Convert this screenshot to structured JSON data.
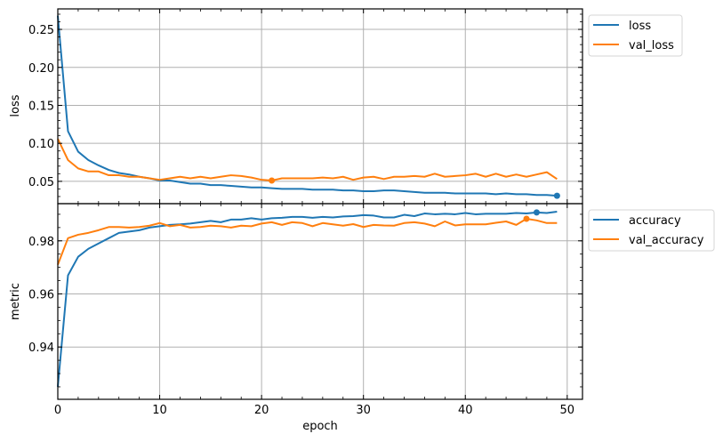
{
  "chart_data": [
    {
      "type": "line",
      "panel": "top",
      "title": "",
      "xlabel": "",
      "ylabel": "loss",
      "xlim": [
        0,
        51.5
      ],
      "ylim": [
        0.0206,
        0.277
      ],
      "yticks": [
        0.05,
        0.1,
        0.15,
        0.2,
        0.25
      ],
      "ytick_labels": [
        "0.05",
        "0.10",
        "0.15",
        "0.20",
        "0.25"
      ],
      "grid": true,
      "legend_position": "outside upper right",
      "x": [
        0,
        1,
        2,
        3,
        4,
        5,
        6,
        7,
        8,
        9,
        10,
        11,
        12,
        13,
        14,
        15,
        16,
        17,
        18,
        19,
        20,
        21,
        22,
        23,
        24,
        25,
        26,
        27,
        28,
        29,
        30,
        31,
        32,
        33,
        34,
        35,
        36,
        37,
        38,
        39,
        40,
        41,
        42,
        43,
        44,
        45,
        46,
        47,
        48,
        49
      ],
      "series": [
        {
          "name": "loss",
          "color": "#1f77b4",
          "values": [
            0.268,
            0.116,
            0.089,
            0.078,
            0.071,
            0.065,
            0.061,
            0.059,
            0.056,
            0.054,
            0.051,
            0.051,
            0.049,
            0.047,
            0.047,
            0.045,
            0.045,
            0.044,
            0.043,
            0.042,
            0.042,
            0.041,
            0.04,
            0.04,
            0.04,
            0.039,
            0.039,
            0.039,
            0.038,
            0.038,
            0.037,
            0.037,
            0.038,
            0.038,
            0.037,
            0.036,
            0.035,
            0.035,
            0.035,
            0.034,
            0.034,
            0.034,
            0.034,
            0.033,
            0.034,
            0.033,
            0.033,
            0.032,
            0.032,
            0.031
          ],
          "marker": {
            "epoch": 49,
            "value": 0.031
          }
        },
        {
          "name": "val_loss",
          "color": "#ff7f0e",
          "values": [
            0.106,
            0.078,
            0.067,
            0.063,
            0.063,
            0.058,
            0.058,
            0.056,
            0.056,
            0.054,
            0.052,
            0.054,
            0.056,
            0.054,
            0.056,
            0.054,
            0.056,
            0.058,
            0.057,
            0.055,
            0.052,
            0.051,
            0.054,
            0.054,
            0.054,
            0.054,
            0.055,
            0.054,
            0.056,
            0.052,
            0.055,
            0.056,
            0.053,
            0.056,
            0.056,
            0.057,
            0.056,
            0.06,
            0.056,
            0.057,
            0.058,
            0.06,
            0.056,
            0.06,
            0.056,
            0.059,
            0.056,
            0.059,
            0.062,
            0.053
          ],
          "marker": {
            "epoch": 21,
            "value": 0.051
          }
        }
      ]
    },
    {
      "type": "line",
      "panel": "bottom",
      "title": "",
      "xlabel": "epoch",
      "ylabel": "metric",
      "xlim": [
        0,
        51.5
      ],
      "ylim": [
        0.9203,
        0.994
      ],
      "yticks": [
        0.94,
        0.96,
        0.98
      ],
      "ytick_labels": [
        "0.94",
        "0.96",
        "0.98"
      ],
      "xticks": [
        0,
        10,
        20,
        30,
        40,
        50
      ],
      "xtick_labels": [
        "0",
        "10",
        "20",
        "30",
        "40",
        "50"
      ],
      "grid": true,
      "legend_position": "outside upper right",
      "x": [
        0,
        1,
        2,
        3,
        4,
        5,
        6,
        7,
        8,
        9,
        10,
        11,
        12,
        13,
        14,
        15,
        16,
        17,
        18,
        19,
        20,
        21,
        22,
        23,
        24,
        25,
        26,
        27,
        28,
        29,
        30,
        31,
        32,
        33,
        34,
        35,
        36,
        37,
        38,
        39,
        40,
        41,
        42,
        43,
        44,
        45,
        46,
        47,
        48,
        49
      ],
      "series": [
        {
          "name": "accuracy",
          "color": "#1f77b4",
          "values": [
            0.925,
            0.967,
            0.974,
            0.977,
            0.979,
            0.981,
            0.983,
            0.9835,
            0.984,
            0.985,
            0.9855,
            0.986,
            0.9862,
            0.9865,
            0.987,
            0.9875,
            0.987,
            0.988,
            0.988,
            0.9885,
            0.988,
            0.9885,
            0.9887,
            0.989,
            0.989,
            0.9887,
            0.989,
            0.9888,
            0.9892,
            0.9893,
            0.9897,
            0.9895,
            0.9888,
            0.9888,
            0.9898,
            0.9893,
            0.9903,
            0.99,
            0.9902,
            0.99,
            0.9905,
            0.99,
            0.9902,
            0.9902,
            0.9902,
            0.9905,
            0.9903,
            0.9907,
            0.9905,
            0.991
          ],
          "marker": {
            "epoch": 47,
            "value": 0.9907
          }
        },
        {
          "name": "val_accuracy",
          "color": "#ff7f0e",
          "values": [
            0.971,
            0.981,
            0.9823,
            0.983,
            0.984,
            0.9852,
            0.9852,
            0.985,
            0.9852,
            0.9857,
            0.9867,
            0.9855,
            0.986,
            0.985,
            0.9852,
            0.9857,
            0.9855,
            0.985,
            0.9857,
            0.9855,
            0.9865,
            0.987,
            0.986,
            0.987,
            0.9867,
            0.9855,
            0.9867,
            0.9862,
            0.9857,
            0.9863,
            0.9852,
            0.986,
            0.9858,
            0.9857,
            0.9867,
            0.987,
            0.9865,
            0.9855,
            0.9873,
            0.9858,
            0.9862,
            0.9862,
            0.9862,
            0.9868,
            0.9873,
            0.986,
            0.9883,
            0.9877,
            0.9867,
            0.9867
          ],
          "marker": {
            "epoch": 46,
            "value": 0.9883
          }
        }
      ]
    }
  ],
  "figure": {
    "top_axes": {
      "ylabel": "loss",
      "legend": [
        "loss",
        "val_loss"
      ]
    },
    "bottom_axes": {
      "ylabel": "metric",
      "xlabel": "epoch",
      "legend": [
        "accuracy",
        "val_accuracy"
      ]
    },
    "colors": {
      "series_1": "#1f77b4",
      "series_2": "#ff7f0e",
      "grid": "#b0b0b0",
      "axes": "#000000"
    }
  }
}
